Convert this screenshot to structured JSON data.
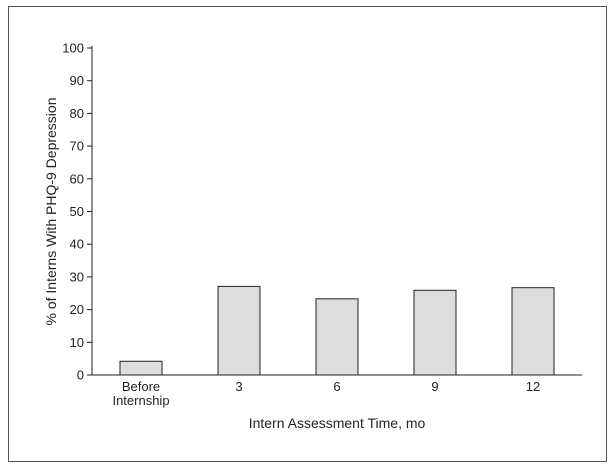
{
  "chart_data": {
    "type": "bar",
    "title": "",
    "xlabel": "Intern Assessment Time, mo",
    "ylabel": "% of Interns With PHQ-9 Depression",
    "categories": [
      [
        "Before",
        "Internship"
      ],
      [
        "3"
      ],
      [
        "6"
      ],
      [
        "9"
      ],
      [
        "12"
      ]
    ],
    "values": [
      4.2,
      27.1,
      23.3,
      25.9,
      26.7
    ],
    "ylim": [
      0,
      100
    ],
    "yticks": [
      "0",
      "10",
      "20",
      "30",
      "40",
      "50",
      "60",
      "70",
      "80",
      "90",
      "100"
    ],
    "grid": false,
    "bar_color": "#dddddd",
    "bar_edge_color": "#222222"
  }
}
